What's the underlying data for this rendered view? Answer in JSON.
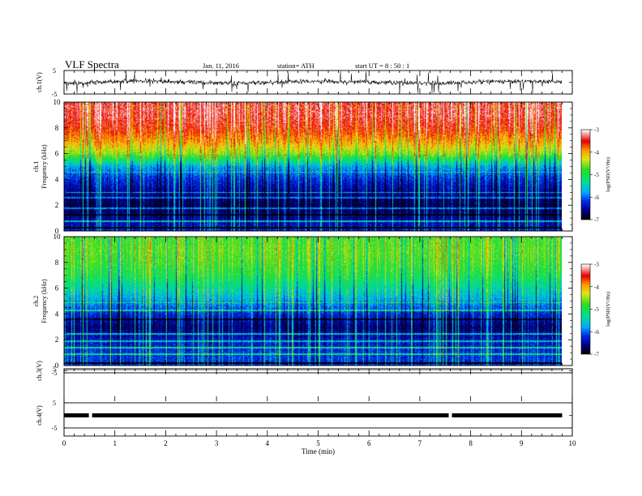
{
  "header": {
    "title": "VLF  Spectra",
    "date": "Jan.  11,  2016",
    "station": "station= ATH",
    "start": "start  UT  =    8  : 50 : 1"
  },
  "chart_data": [
    {
      "type": "line",
      "channel": "ch.1",
      "ylabel": "ch.1(V)",
      "ylim": [
        -5,
        5
      ],
      "yticks": [
        "5",
        "-5"
      ],
      "xlim": [
        0,
        10
      ],
      "approx_level": 0.0
    },
    {
      "type": "heatmap",
      "channel": "ch.1",
      "ylabel": "ch.1\nFrequency  (kHz)",
      "ylim": [
        0,
        10
      ],
      "yticks": [
        "0",
        "2",
        "4",
        "6",
        "8",
        "10"
      ],
      "xlim": [
        0,
        10
      ],
      "colorbar": {
        "label": "log(PSD(V²/Hz)",
        "range": [
          -7,
          -3
        ],
        "ticks": [
          "-3",
          "-4",
          "-5",
          "-6",
          "-7"
        ]
      },
      "profile_khz_logpsd": [
        [
          0,
          -6.3
        ],
        [
          1,
          -6.6
        ],
        [
          2,
          -6.8
        ],
        [
          3,
          -6.6
        ],
        [
          4,
          -6.3
        ],
        [
          5,
          -5.8
        ],
        [
          6,
          -4.6
        ],
        [
          7,
          -4.0
        ],
        [
          8,
          -3.6
        ],
        [
          9,
          -3.4
        ],
        [
          10,
          -3.4
        ]
      ]
    },
    {
      "type": "heatmap",
      "channel": "ch.2",
      "ylabel": "ch.2\nFrequency  (kHz)",
      "ylim": [
        0,
        10
      ],
      "yticks": [
        "0",
        "2",
        "4",
        "6",
        "8",
        "10"
      ],
      "xlim": [
        0,
        10
      ],
      "colorbar": {
        "label": "log(PSD(V²/Hz)",
        "range": [
          -7,
          -3
        ],
        "ticks": [
          "-3",
          "-4",
          "-5",
          "-6",
          "-7"
        ]
      },
      "profile_khz_logpsd": [
        [
          0,
          -6.2
        ],
        [
          1,
          -6.2
        ],
        [
          2,
          -6.4
        ],
        [
          3,
          -6.7
        ],
        [
          4,
          -6.3
        ],
        [
          5,
          -5.8
        ],
        [
          6,
          -5.4
        ],
        [
          7,
          -5.0
        ],
        [
          8,
          -4.8
        ],
        [
          9,
          -4.7
        ],
        [
          10,
          -4.8
        ]
      ]
    },
    {
      "type": "line",
      "channel": "ch.3",
      "ylabel": "ch.3(V)",
      "ylim": [
        -5,
        5
      ],
      "yticks": [
        "5",
        "-5"
      ],
      "xlim": [
        0,
        10
      ],
      "approx_level": 2.0
    },
    {
      "type": "line",
      "channel": "ch.4",
      "ylabel": "ch.4(V)",
      "ylim": [
        -5,
        5
      ],
      "yticks": [
        "5",
        "-5"
      ],
      "xlim": [
        0,
        10
      ],
      "approx_level": 0.0,
      "dropouts_min": [
        0.52,
        7.6
      ]
    }
  ],
  "xaxis": {
    "label": "Time  (min)",
    "ticks": [
      "0",
      "1",
      "2",
      "3",
      "4",
      "5",
      "6",
      "7",
      "8",
      "9",
      "10"
    ],
    "data_end_min": 9.8
  }
}
